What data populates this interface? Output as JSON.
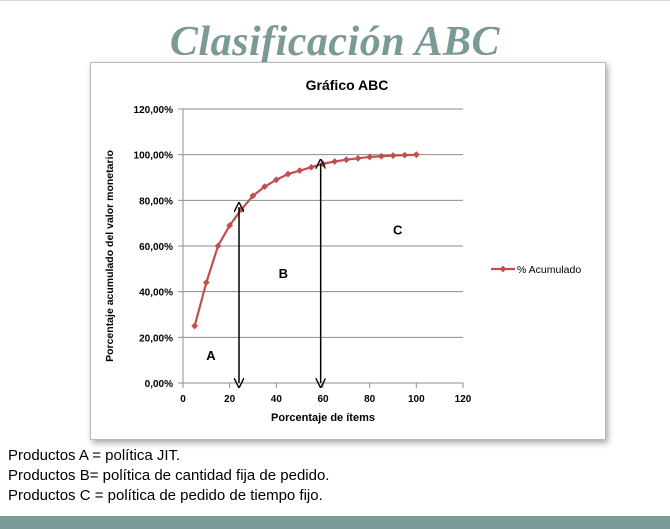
{
  "slide": {
    "title": "Clasificación ABC",
    "notes": [
      "Productos A = política JIT.",
      "Productos B= política de cantidad fija de pedido.",
      "Productos C = política de pedido de tiempo fijo."
    ]
  },
  "colors": {
    "title": "#7a9a98",
    "series": "#c0504d",
    "band": "#7a9a98"
  },
  "chart_data": {
    "type": "line",
    "title": "Gráfico ABC",
    "xlabel": "Porcentaje de ítems",
    "ylabel": "Porcentaje acumulado del valor monetario",
    "xlim": [
      0,
      120
    ],
    "ylim": [
      0,
      120
    ],
    "x_ticks": [
      "0",
      "20",
      "40",
      "60",
      "80",
      "100",
      "120"
    ],
    "y_ticks": [
      "0,00%",
      "20,00%",
      "40,00%",
      "60,00%",
      "80,00%",
      "100,00%",
      "120,00%"
    ],
    "grid": "horizontal",
    "legend": "right",
    "series": [
      {
        "name": "% Acumulado",
        "x": [
          5,
          10,
          15,
          20,
          25,
          30,
          35,
          40,
          45,
          50,
          55,
          60,
          65,
          70,
          75,
          80,
          85,
          90,
          95,
          100
        ],
        "y": [
          25,
          44,
          60,
          69,
          76,
          82,
          86,
          89,
          91.5,
          93,
          94.5,
          96,
          97,
          97.8,
          98.4,
          99,
          99.3,
          99.6,
          99.8,
          100
        ]
      }
    ],
    "annotations": [
      {
        "text": "A",
        "x": 12,
        "y": 10
      },
      {
        "text": "B",
        "x": 43,
        "y": 46
      },
      {
        "text": "C",
        "x": 92,
        "y": 65
      }
    ],
    "arrows": [
      {
        "x": 24,
        "y_from": 0,
        "y_to": 77
      },
      {
        "x": 59,
        "y_from": 0,
        "y_to": 96
      }
    ]
  }
}
